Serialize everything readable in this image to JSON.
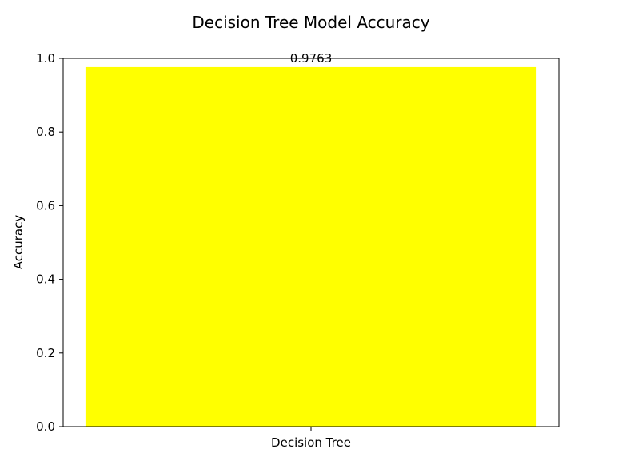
{
  "chart_data": {
    "type": "bar",
    "title": "Decision Tree Model Accuracy",
    "xlabel": "",
    "ylabel": "Accuracy",
    "categories": [
      "Decision Tree"
    ],
    "values": [
      0.9763
    ],
    "data_labels": [
      "0.9763"
    ],
    "ylim": [
      0,
      1.0
    ],
    "yticks": [
      0.0,
      0.2,
      0.4,
      0.6,
      0.8,
      1.0
    ],
    "ytick_labels": [
      "0.0",
      "0.2",
      "0.4",
      "0.6",
      "0.8",
      "1.0"
    ],
    "bar_color": "#ffff00",
    "grid": false,
    "legend": "none"
  }
}
